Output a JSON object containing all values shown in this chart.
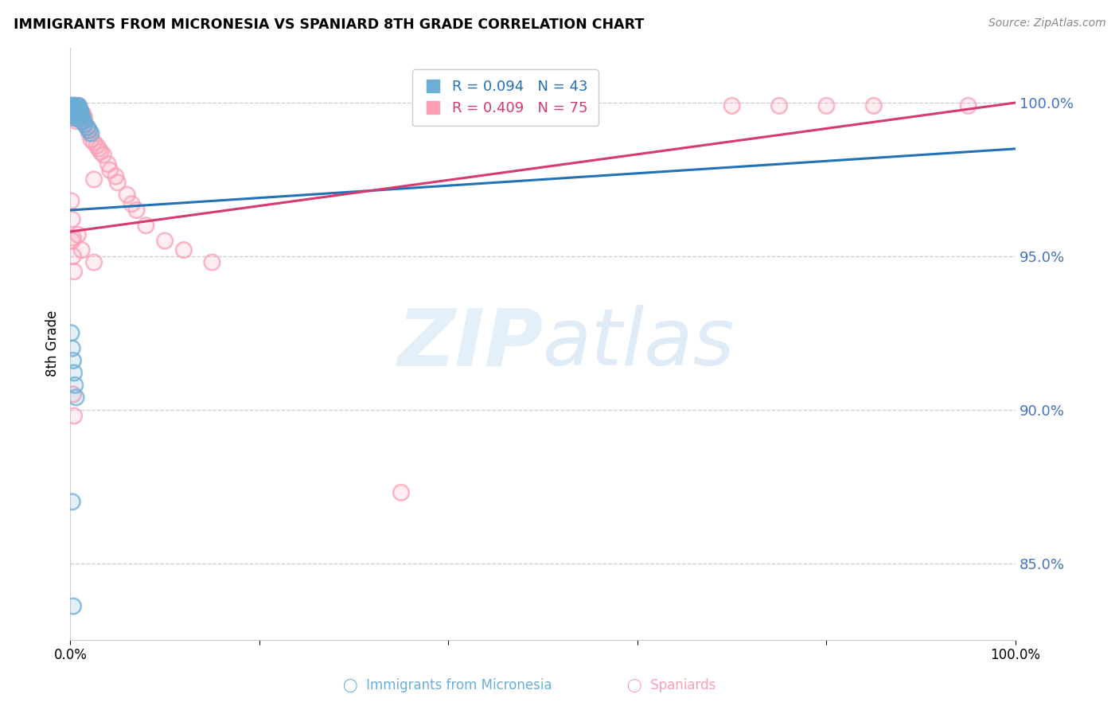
{
  "title": "IMMIGRANTS FROM MICRONESIA VS SPANIARD 8TH GRADE CORRELATION CHART",
  "source": "Source: ZipAtlas.com",
  "ylabel": "8th Grade",
  "right_yticklabels": [
    "85.0%",
    "90.0%",
    "95.0%",
    "100.0%"
  ],
  "right_yticks": [
    0.85,
    0.9,
    0.95,
    1.0
  ],
  "xlim": [
    0.0,
    1.0
  ],
  "ylim": [
    0.825,
    1.018
  ],
  "blue_R": 0.094,
  "blue_N": 43,
  "pink_R": 0.409,
  "pink_N": 75,
  "blue_color": "#6baed6",
  "pink_color": "#fa9fb5",
  "blue_line_color": "#2171b5",
  "pink_line_color": "#d63a6e",
  "blue_trend_x0": 0.0,
  "blue_trend_y0": 0.965,
  "blue_trend_x1": 1.0,
  "blue_trend_y1": 0.985,
  "pink_trend_x0": 0.0,
  "pink_trend_y0": 0.958,
  "pink_trend_x1": 1.0,
  "pink_trend_y1": 1.0,
  "blue_scatter_x": [
    0.001,
    0.001,
    0.002,
    0.002,
    0.002,
    0.003,
    0.003,
    0.003,
    0.003,
    0.004,
    0.004,
    0.004,
    0.005,
    0.005,
    0.005,
    0.005,
    0.006,
    0.006,
    0.007,
    0.007,
    0.007,
    0.008,
    0.008,
    0.009,
    0.009,
    0.01,
    0.01,
    0.011,
    0.012,
    0.013,
    0.014,
    0.015,
    0.018,
    0.02,
    0.022,
    0.001,
    0.002,
    0.003,
    0.004,
    0.005,
    0.006,
    0.002,
    0.003
  ],
  "blue_scatter_y": [
    0.999,
    0.997,
    0.999,
    0.998,
    0.996,
    0.999,
    0.998,
    0.997,
    0.996,
    0.999,
    0.998,
    0.997,
    0.999,
    0.998,
    0.997,
    0.995,
    0.998,
    0.996,
    0.999,
    0.997,
    0.995,
    0.998,
    0.996,
    0.999,
    0.997,
    0.998,
    0.996,
    0.997,
    0.996,
    0.995,
    0.994,
    0.993,
    0.992,
    0.991,
    0.99,
    0.925,
    0.92,
    0.916,
    0.912,
    0.908,
    0.904,
    0.87,
    0.836
  ],
  "pink_scatter_x": [
    0.001,
    0.001,
    0.001,
    0.002,
    0.002,
    0.002,
    0.002,
    0.003,
    0.003,
    0.003,
    0.003,
    0.004,
    0.004,
    0.004,
    0.004,
    0.005,
    0.005,
    0.005,
    0.006,
    0.006,
    0.006,
    0.007,
    0.007,
    0.008,
    0.008,
    0.009,
    0.009,
    0.01,
    0.01,
    0.011,
    0.011,
    0.012,
    0.012,
    0.013,
    0.014,
    0.015,
    0.016,
    0.018,
    0.019,
    0.02,
    0.022,
    0.025,
    0.025,
    0.028,
    0.03,
    0.032,
    0.035,
    0.04,
    0.042,
    0.048,
    0.05,
    0.06,
    0.065,
    0.07,
    0.08,
    0.1,
    0.12,
    0.15,
    0.001,
    0.002,
    0.003,
    0.002,
    0.003,
    0.004,
    0.008,
    0.012,
    0.025,
    0.35,
    0.7,
    0.75,
    0.8,
    0.85,
    0.95,
    0.003,
    0.004
  ],
  "pink_scatter_y": [
    0.999,
    0.998,
    0.997,
    0.999,
    0.998,
    0.997,
    0.996,
    0.999,
    0.998,
    0.997,
    0.996,
    0.999,
    0.998,
    0.997,
    0.995,
    0.999,
    0.997,
    0.995,
    0.999,
    0.997,
    0.994,
    0.998,
    0.996,
    0.998,
    0.996,
    0.999,
    0.997,
    0.998,
    0.996,
    0.997,
    0.995,
    0.997,
    0.994,
    0.996,
    0.996,
    0.995,
    0.993,
    0.992,
    0.991,
    0.99,
    0.988,
    0.987,
    0.975,
    0.986,
    0.985,
    0.984,
    0.983,
    0.98,
    0.978,
    0.976,
    0.974,
    0.97,
    0.967,
    0.965,
    0.96,
    0.955,
    0.952,
    0.948,
    0.968,
    0.962,
    0.956,
    0.955,
    0.95,
    0.945,
    0.957,
    0.952,
    0.948,
    0.873,
    0.999,
    0.999,
    0.999,
    0.999,
    0.999,
    0.905,
    0.898
  ]
}
